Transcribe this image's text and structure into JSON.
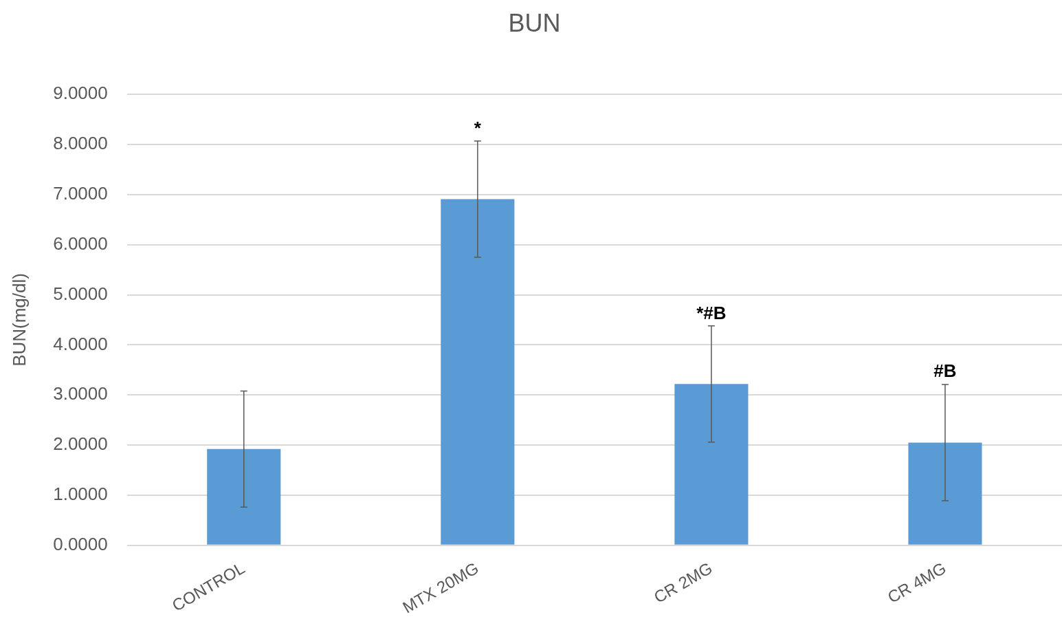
{
  "chart_data": {
    "type": "bar",
    "title": "BUN",
    "ylabel": "BUN(mg/dl)",
    "categories": [
      "CONTROL",
      "MTX 20MG",
      "CR 2MG",
      "CR 4MG"
    ],
    "values": [
      1.92,
      6.91,
      3.22,
      2.05
    ],
    "errors": [
      1.16,
      1.16,
      1.16,
      1.16
    ],
    "color": "#5b9bd5",
    "ylim": [
      0,
      9
    ],
    "yticks": [
      {
        "value": 0,
        "label": "0.0000"
      },
      {
        "value": 1,
        "label": "1.0000"
      },
      {
        "value": 2,
        "label": "2.0000"
      },
      {
        "value": 3,
        "label": "3.0000"
      },
      {
        "value": 4,
        "label": "4.0000"
      },
      {
        "value": 5,
        "label": "5.0000"
      },
      {
        "value": 6,
        "label": "6.0000"
      },
      {
        "value": 7,
        "label": "7.0000"
      },
      {
        "value": 8,
        "label": "8.0000"
      },
      {
        "value": 9,
        "label": "9.0000"
      }
    ],
    "grid": "y",
    "annotations": [
      {
        "text": "*",
        "x": "MTX 20MG",
        "y": 8.07
      },
      {
        "text": "*#B",
        "x": "CR 2MG",
        "y": 4.38
      },
      {
        "text": "#B",
        "x": "CR 4MG",
        "y": 3.22
      }
    ]
  }
}
